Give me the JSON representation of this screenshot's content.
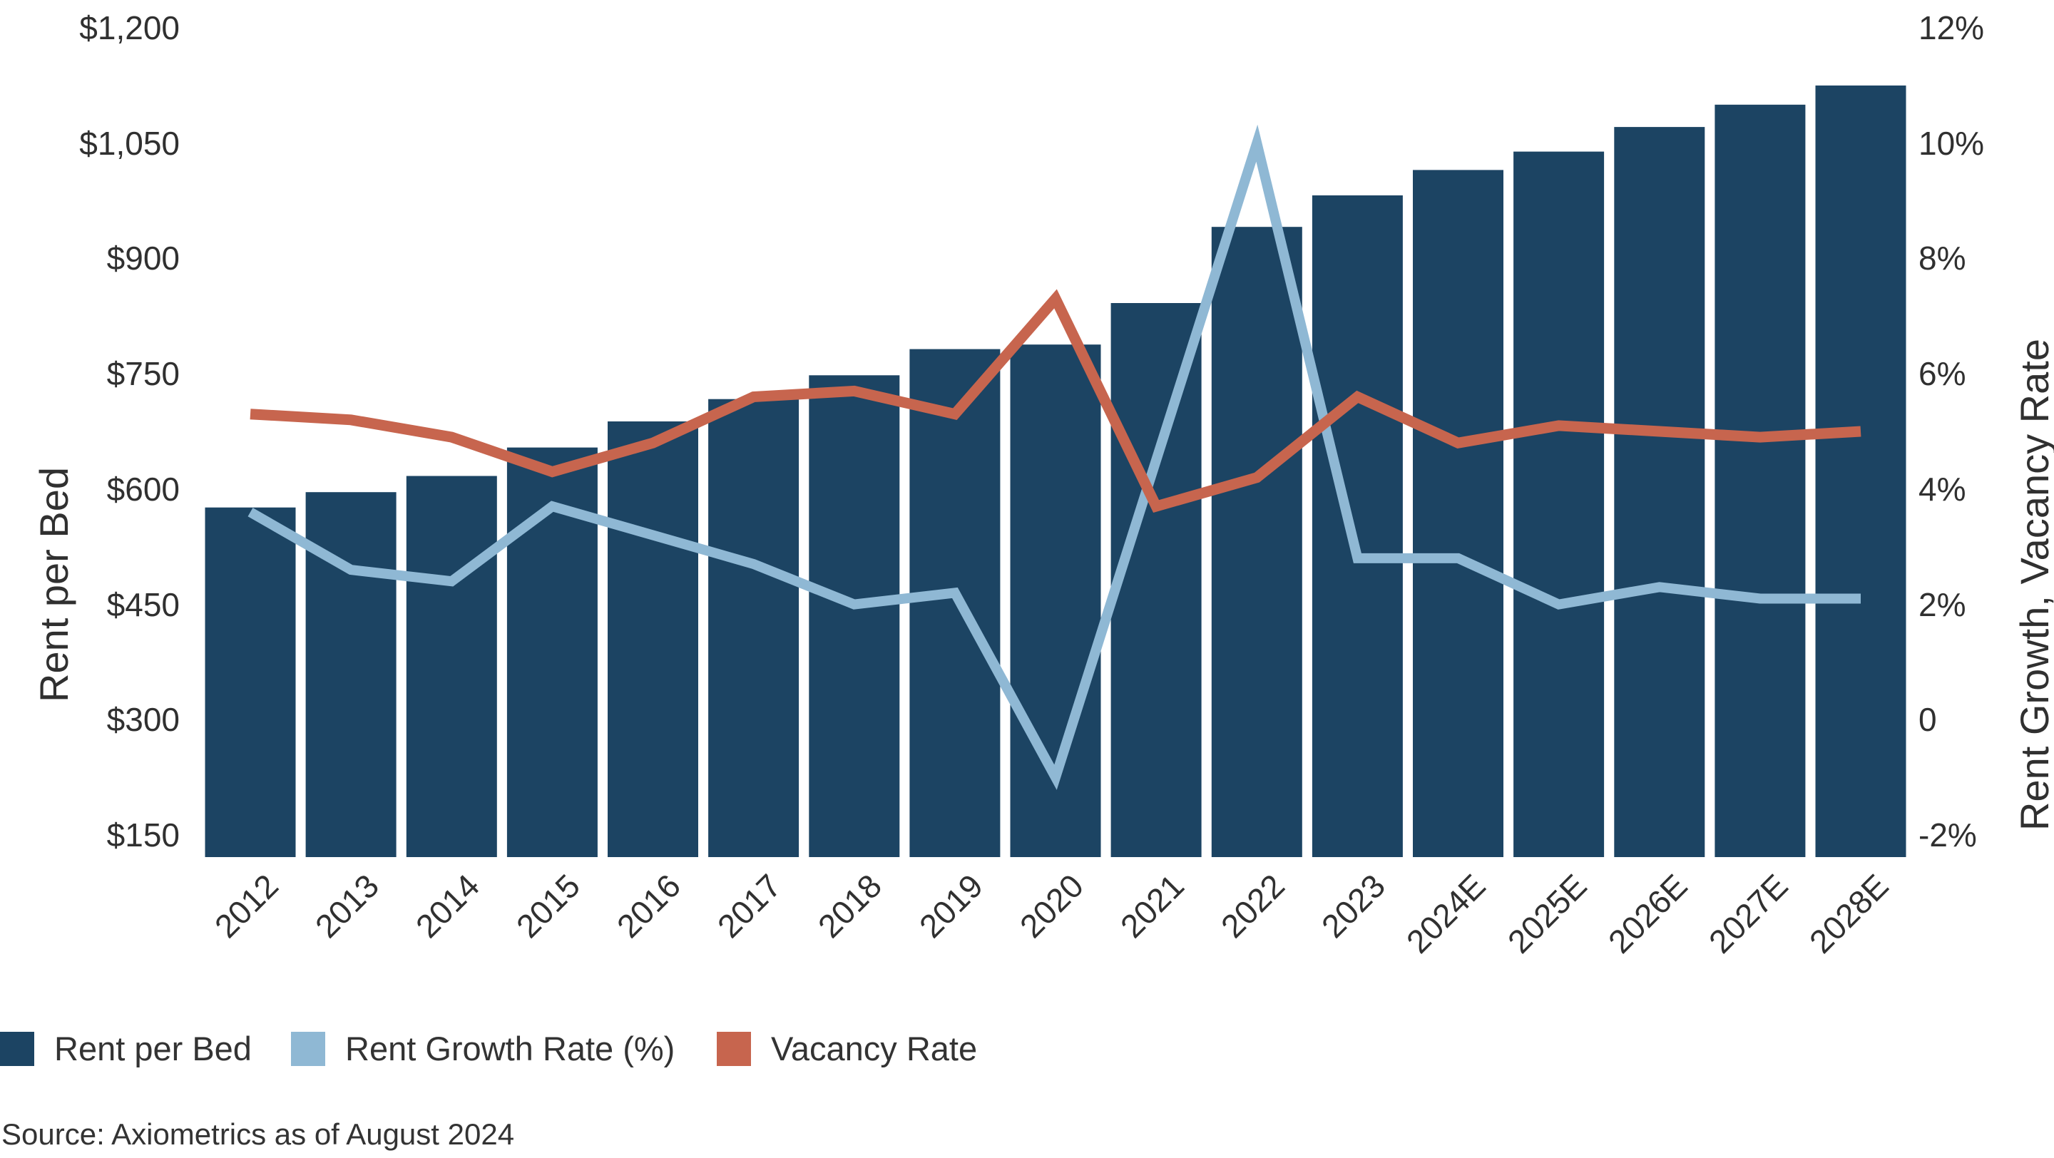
{
  "chart_data": {
    "type": "bar",
    "subtype": "combo-bar-with-two-lines",
    "title": "",
    "categories": [
      "2012",
      "2013",
      "2014",
      "2015",
      "2016",
      "2017",
      "2018",
      "2019",
      "2020",
      "2021",
      "2022",
      "2023",
      "2024E",
      "2025E",
      "2026E",
      "2027E",
      "2028E"
    ],
    "series": [
      {
        "name": "Rent per Bed",
        "type": "bar",
        "axis": "left",
        "unit": "USD per bed",
        "color": "#1C4463",
        "values": [
          576,
          596,
          617,
          654,
          688,
          717,
          748,
          782,
          788,
          842,
          941,
          982,
          1015,
          1039,
          1071,
          1100,
          1125
        ]
      },
      {
        "name": "Rent Growth Rate (%)",
        "type": "line",
        "axis": "right",
        "unit": "%",
        "color": "#8FB8D4",
        "values": [
          3.6,
          2.6,
          2.4,
          3.7,
          3.2,
          2.7,
          2.0,
          2.2,
          -1.0,
          4.5,
          10.0,
          2.8,
          2.8,
          2.0,
          2.3,
          2.1,
          2.1
        ]
      },
      {
        "name": "Vacancy Rate",
        "type": "line",
        "axis": "right",
        "unit": "%",
        "color": "#C7654E",
        "values": [
          5.3,
          5.2,
          4.9,
          4.3,
          4.8,
          5.6,
          5.7,
          5.3,
          7.3,
          3.7,
          4.2,
          5.6,
          4.8,
          5.1,
          5.0,
          4.9,
          5.0
        ]
      }
    ],
    "left_axis": {
      "title": "Rent per Bed",
      "tick_labels": [
        "$1,200",
        "$1,050",
        "$900",
        "$750",
        "$600",
        "$450",
        "$300",
        "$150"
      ],
      "tick_values": [
        1200,
        1050,
        900,
        750,
        600,
        450,
        300,
        150
      ],
      "min": 150,
      "max": 1200
    },
    "right_axis": {
      "title": "Rent Growth, Vacancy Rate",
      "tick_labels": [
        "12%",
        "10%",
        "8%",
        "6%",
        "4%",
        "2%",
        "0",
        "-2%"
      ],
      "tick_values": [
        12,
        10,
        8,
        6,
        4,
        2,
        0,
        -2
      ],
      "min": -2,
      "max": 12
    },
    "grid": false,
    "legend_position": "bottom-left",
    "legend": [
      {
        "label": "Rent per Bed",
        "color": "#1C4463"
      },
      {
        "label": "Rent Growth Rate (%)",
        "color": "#8FB8D4"
      },
      {
        "label": "Vacancy Rate",
        "color": "#C7654E"
      }
    ],
    "source": "Source: Axiometrics as of August 2024"
  },
  "colors": {
    "background": "#FFFFFF",
    "bar": "#1C4463",
    "rent_growth_line": "#8FB8D4",
    "vacancy_line": "#C7654E",
    "text": "#303030"
  }
}
